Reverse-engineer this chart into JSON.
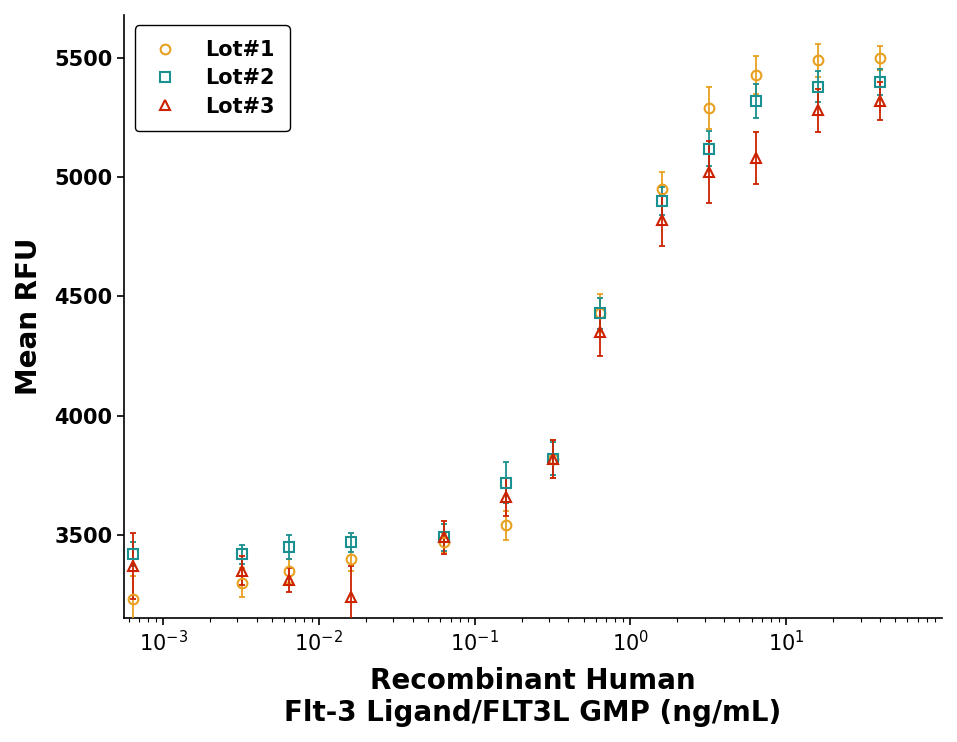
{
  "title": "",
  "xlabel": "Recombinant Human\nFlt-3 Ligand/FLT3L GMP (ng/mL)",
  "ylabel": "Mean RFU",
  "ylim": [
    3150,
    5680
  ],
  "yticks": [
    3500,
    4000,
    4500,
    5000,
    5500
  ],
  "colors": {
    "lot1": "#E8A020",
    "lot2": "#1A9090",
    "lot3": "#CC2200"
  },
  "lot1": {
    "x": [
      0.00064,
      0.0032,
      0.0064,
      0.016,
      0.064,
      0.16,
      0.32,
      0.64,
      1.6,
      3.2,
      6.4,
      16,
      40
    ],
    "y": [
      3230,
      3300,
      3350,
      3400,
      3470,
      3540,
      3820,
      4430,
      4950,
      5290,
      5430,
      5490,
      5500
    ],
    "yerr": [
      100,
      60,
      50,
      50,
      40,
      60,
      80,
      80,
      70,
      90,
      80,
      70,
      50
    ]
  },
  "lot2": {
    "x": [
      0.00064,
      0.0032,
      0.0064,
      0.016,
      0.064,
      0.16,
      0.32,
      0.64,
      1.6,
      3.2,
      6.4,
      16,
      40
    ],
    "y": [
      3420,
      3420,
      3450,
      3470,
      3490,
      3720,
      3820,
      4430,
      4900,
      5120,
      5320,
      5380,
      5400
    ],
    "yerr": [
      50,
      40,
      50,
      40,
      55,
      85,
      70,
      65,
      60,
      75,
      70,
      65,
      55
    ]
  },
  "lot3": {
    "x": [
      0.00064,
      0.0032,
      0.0064,
      0.016,
      0.064,
      0.16,
      0.32,
      0.64,
      1.6,
      3.2,
      6.4,
      16,
      40
    ],
    "y": [
      3370,
      3350,
      3310,
      3240,
      3490,
      3660,
      3820,
      4350,
      4820,
      5020,
      5080,
      5280,
      5320
    ],
    "yerr": [
      140,
      60,
      50,
      130,
      70,
      80,
      80,
      100,
      110,
      130,
      110,
      90,
      80
    ]
  },
  "marker_sizes": 7,
  "line_width": 1.8,
  "font_size_label": 20,
  "font_size_tick": 15,
  "font_size_legend": 15
}
